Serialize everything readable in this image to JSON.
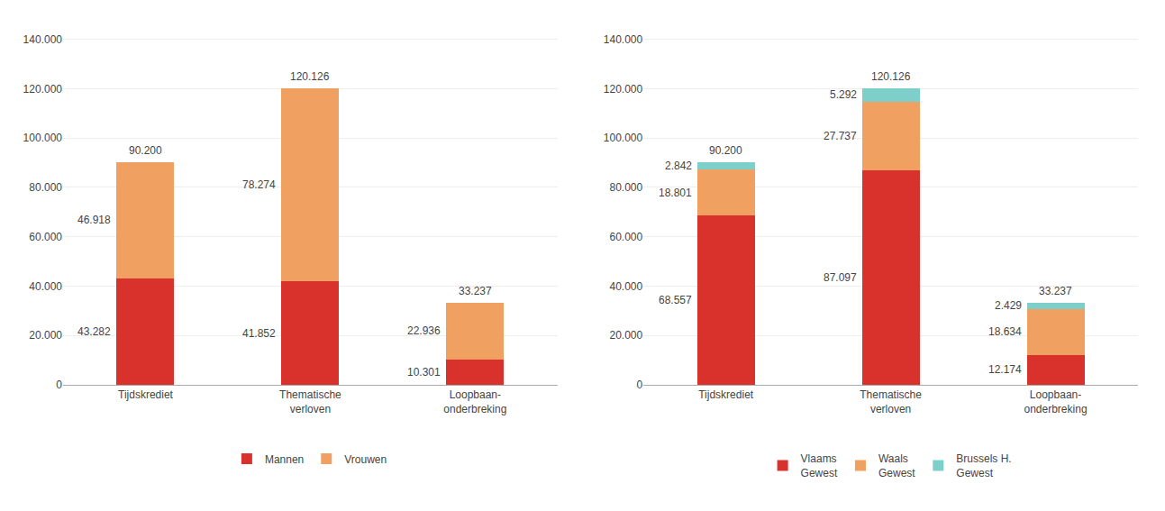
{
  "chart_data": [
    {
      "type": "bar",
      "stacked": true,
      "data_labels": true,
      "grid": true,
      "legend": "bottom",
      "categories": [
        "Tijdskrediet",
        "Thematische\nverloven",
        "Loopbaan-\nonderbreking"
      ],
      "series": [
        {
          "name": "Mannen",
          "color": "#d9312b",
          "values": [
            43282,
            41852,
            10301
          ],
          "value_labels": [
            "43.282",
            "41.852",
            "10.301"
          ]
        },
        {
          "name": "Vrouwen",
          "color": "#f0a060",
          "values": [
            46918,
            78274,
            22936
          ],
          "value_labels": [
            "46.918",
            "78.274",
            "22.936"
          ]
        }
      ],
      "totals": [
        90200,
        120126,
        33237
      ],
      "total_labels": [
        "90.200",
        "120.126",
        "33.237"
      ],
      "ylim": [
        0,
        145000
      ],
      "yticks": [
        0,
        {
          "value": 20000,
          "label": "20.000"
        },
        {
          "value": 40000,
          "label": "40.000"
        },
        {
          "value": 60000,
          "label": "60.000"
        },
        {
          "value": 80000,
          "label": "80.000"
        },
        {
          "value": 100000,
          "label": "100.000"
        },
        {
          "value": 120000,
          "label": "120.000"
        },
        {
          "value": 140000,
          "label": "140.000"
        }
      ]
    },
    {
      "type": "bar",
      "stacked": true,
      "data_labels": true,
      "grid": true,
      "legend": "bottom",
      "categories": [
        "Tijdskrediet",
        "Thematische\nverloven",
        "Loopbaan-\nonderbreking"
      ],
      "series": [
        {
          "name": "Vlaams\nGewest",
          "color": "#d9312b",
          "values": [
            68557,
            87097,
            12174
          ],
          "value_labels": [
            "68.557",
            "87.097",
            "12.174"
          ]
        },
        {
          "name": "Waals\nGewest",
          "color": "#f0a060",
          "values": [
            18801,
            27737,
            18634
          ],
          "value_labels": [
            "18.801",
            "27.737",
            "18.634"
          ]
        },
        {
          "name": "Brussels H.\nGewest",
          "color": "#7ececa",
          "values": [
            2842,
            5292,
            2429
          ],
          "value_labels": [
            "2.842",
            "5.292",
            "2.429"
          ]
        }
      ],
      "totals": [
        90200,
        120126,
        33237
      ],
      "total_labels": [
        "90.200",
        "120.126",
        "33.237"
      ],
      "ylim": [
        0,
        145000
      ],
      "yticks": [
        0,
        {
          "value": 20000,
          "label": "20.000"
        },
        {
          "value": 40000,
          "label": "40.000"
        },
        {
          "value": 60000,
          "label": "60.000"
        },
        {
          "value": 80000,
          "label": "80.000"
        },
        {
          "value": 100000,
          "label": "100.000"
        },
        {
          "value": 120000,
          "label": "120.000"
        },
        {
          "value": 140000,
          "label": "140.000"
        }
      ]
    }
  ]
}
